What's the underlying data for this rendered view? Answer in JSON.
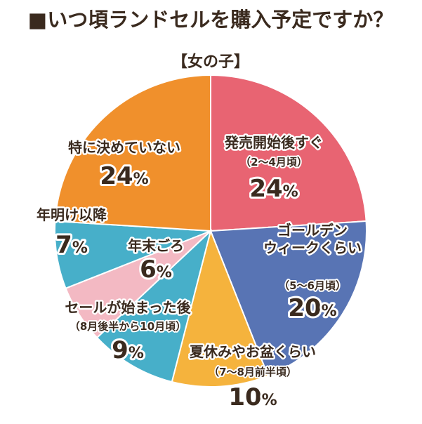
{
  "title": "■いつ頃ランドセルを購入予定ですか？",
  "subtitle": "【女の子】",
  "chart_data": {
    "type": "pie",
    "title": "■いつ頃ランドセルを購入予定ですか？",
    "subtitle": "【女の子】",
    "start": "12 o'clock",
    "direction": "clockwise",
    "slices": [
      {
        "label": "発売開始後すぐ",
        "sub": "（2～4月頃）",
        "value": 24,
        "value_text": "24",
        "unit": "%",
        "color": "#e86472"
      },
      {
        "label": "ゴールデン\nウィークくらい",
        "sub": "（5～6月頃）",
        "value": 20,
        "value_text": "20",
        "unit": "%",
        "color": "#5874b4"
      },
      {
        "label": "夏休みやお盆くらい",
        "sub": "（7～8月前半頃）",
        "value": 10,
        "value_text": "10",
        "unit": "%",
        "color": "#f5b33d"
      },
      {
        "label": "セールが始まった後",
        "sub": "（8月後半から10月頃）",
        "value": 9,
        "value_text": "9",
        "unit": "%",
        "color": "#47afc9"
      },
      {
        "label": "年末ごろ",
        "sub": "",
        "value": 6,
        "value_text": "6",
        "unit": "%",
        "color": "#f3b9c3"
      },
      {
        "label": "年明け以降",
        "sub": "",
        "value": 7,
        "value_text": "7",
        "unit": "%",
        "color": "#47afc9"
      },
      {
        "label": "特に決めていない",
        "sub": "",
        "value": 24,
        "value_text": "24",
        "unit": "%",
        "color": "#f0902c"
      }
    ]
  }
}
